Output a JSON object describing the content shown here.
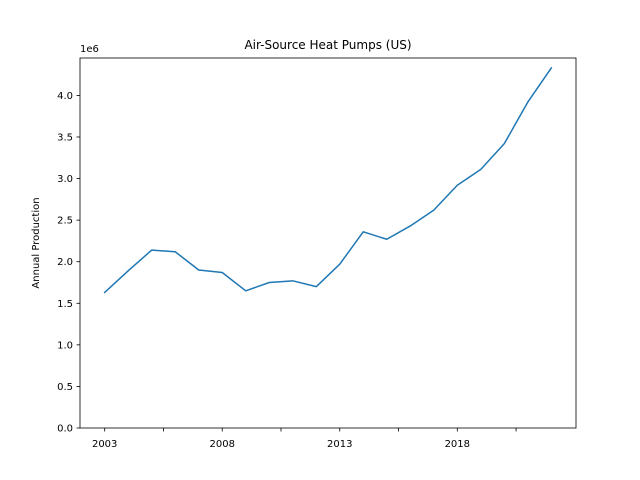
{
  "chart_data": {
    "type": "line",
    "title": "Air-Source Heat Pumps (US)",
    "xlabel": "",
    "ylabel": "Annual Production",
    "y_offset_label": "1e6",
    "x": [
      2003,
      2004,
      2005,
      2006,
      2007,
      2008,
      2009,
      2010,
      2011,
      2012,
      2013,
      2014,
      2015,
      2016,
      2017,
      2018,
      2019,
      2020,
      2021,
      2022
    ],
    "series": [
      {
        "color": "#1f77b4",
        "values": [
          1630000,
          1890000,
          2140000,
          2120000,
          1900000,
          1870000,
          1650000,
          1750000,
          1770000,
          1700000,
          1970000,
          2360000,
          2270000,
          2430000,
          2620000,
          2920000,
          3110000,
          3420000,
          3920000,
          4330000
        ]
      }
    ],
    "xlim": [
      2001.95,
      2023.05
    ],
    "ylim": [
      0,
      4450000
    ],
    "x_ticks": [
      2003,
      2005.5,
      2008,
      2010.5,
      2013,
      2015.5,
      2018,
      2020.5
    ],
    "x_tick_labels": [
      "2003",
      "",
      "2008",
      "",
      "2013",
      "",
      "2018",
      ""
    ],
    "y_ticks": [
      0,
      500000,
      1000000,
      1500000,
      2000000,
      2500000,
      3000000,
      3500000,
      4000000
    ],
    "y_tick_labels": [
      "0.0",
      "0.5",
      "1.0",
      "1.5",
      "2.0",
      "2.5",
      "3.0",
      "3.5",
      "4.0"
    ],
    "grid": false,
    "legend": "none"
  }
}
